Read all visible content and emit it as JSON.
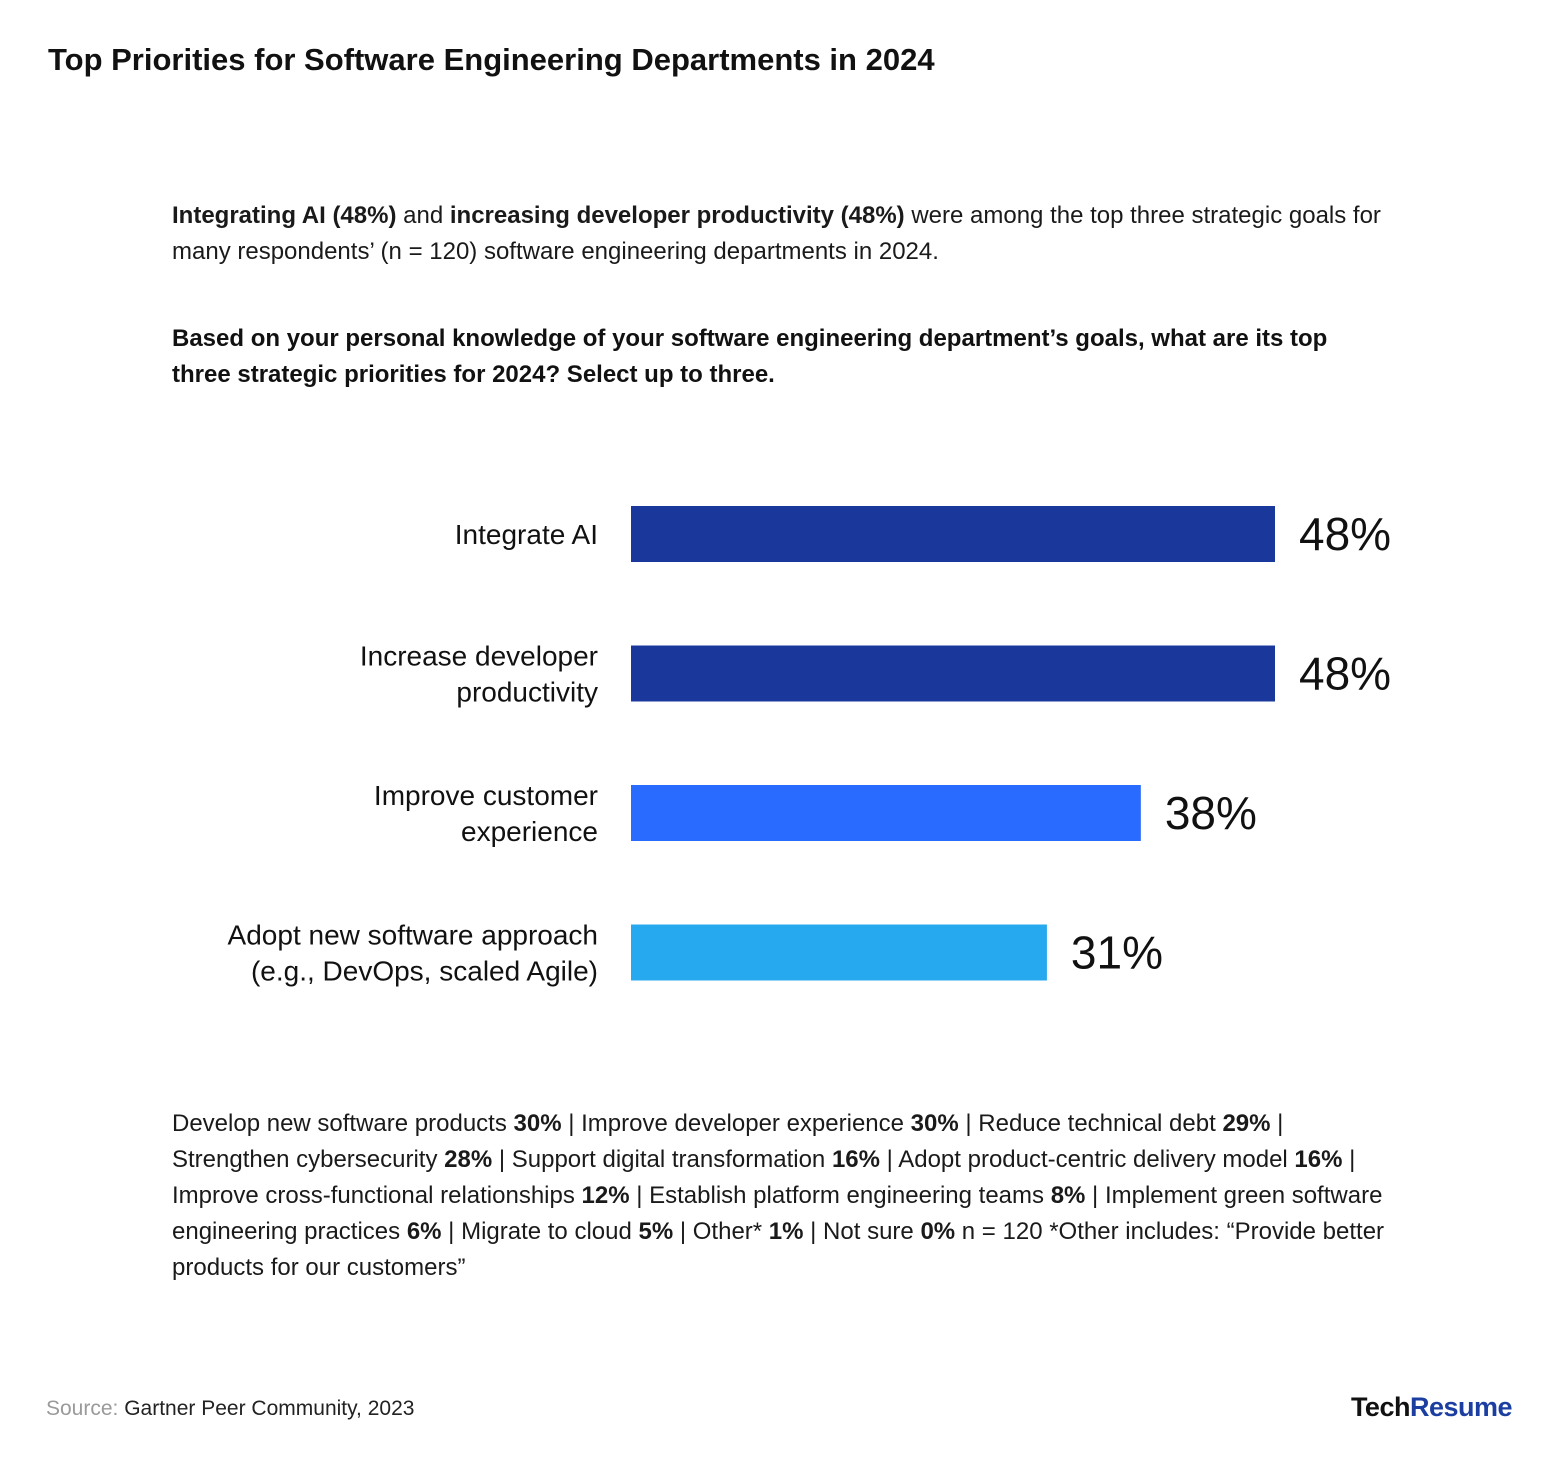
{
  "header": {
    "title": "Top Priorities for Software Engineering Departments in 2024"
  },
  "intro": {
    "part1_bold": "Integrating AI (48%)",
    "part2": " and ",
    "part3_bold": "increasing developer productivity (48%)",
    "part4": " were among the top three strategic goals for many respondents’ (n = 120) software engineering departments in 2024."
  },
  "question": "Based on your personal knowledge of your software engineering department’s goals, what are its top three strategic priorities for 2024? Select up to three.",
  "chart_data": {
    "type": "bar",
    "orientation": "horizontal",
    "categories": [
      [
        "Integrate AI"
      ],
      [
        "Increase developer",
        "productivity"
      ],
      [
        "Improve customer",
        "experience"
      ],
      [
        "Adopt new software approach",
        "(e.g., DevOps, scaled Agile)"
      ]
    ],
    "values": [
      48,
      48,
      38,
      31
    ],
    "value_labels": [
      "48%",
      "48%",
      "38%",
      "31%"
    ],
    "colors": [
      "#1a389c",
      "#1a389c",
      "#2a6bff",
      "#27a9ef"
    ],
    "xlim": [
      0,
      48
    ],
    "grid": false,
    "legend": "none"
  },
  "others": [
    {
      "t": "Develop new software products "
    },
    {
      "t": "30%",
      "b": true
    },
    {
      "t": " | Improve developer experience "
    },
    {
      "t": "30%",
      "b": true
    },
    {
      "t": " | Reduce technical debt "
    },
    {
      "t": "29%",
      "b": true
    },
    {
      "t": " | Strengthen cybersecurity "
    },
    {
      "t": "28%",
      "b": true
    },
    {
      "t": " | Support digital transformation "
    },
    {
      "t": "16%",
      "b": true
    },
    {
      "t": " | Adopt product-centric delivery model "
    },
    {
      "t": "16%",
      "b": true
    },
    {
      "t": " | Improve cross-functional relationships "
    },
    {
      "t": "12%",
      "b": true
    },
    {
      "t": " | Establish platform engineering teams "
    },
    {
      "t": "8%",
      "b": true
    },
    {
      "t": " | Implement green software engineering practices "
    },
    {
      "t": "6%",
      "b": true
    },
    {
      "t": " | Migrate to cloud "
    },
    {
      "t": "5%",
      "b": true
    },
    {
      "t": " | Other* "
    },
    {
      "t": "1%",
      "b": true
    },
    {
      "t": " | Not sure "
    },
    {
      "t": "0%",
      "b": true
    },
    {
      "t": " n = 120 *Other includes: “Provide better products for our customers”"
    }
  ],
  "footer": {
    "source_label": "Source:",
    "source_text": " Gartner Peer Community, 2023",
    "logo_part1": "Tech",
    "logo_part2": "Resume"
  }
}
